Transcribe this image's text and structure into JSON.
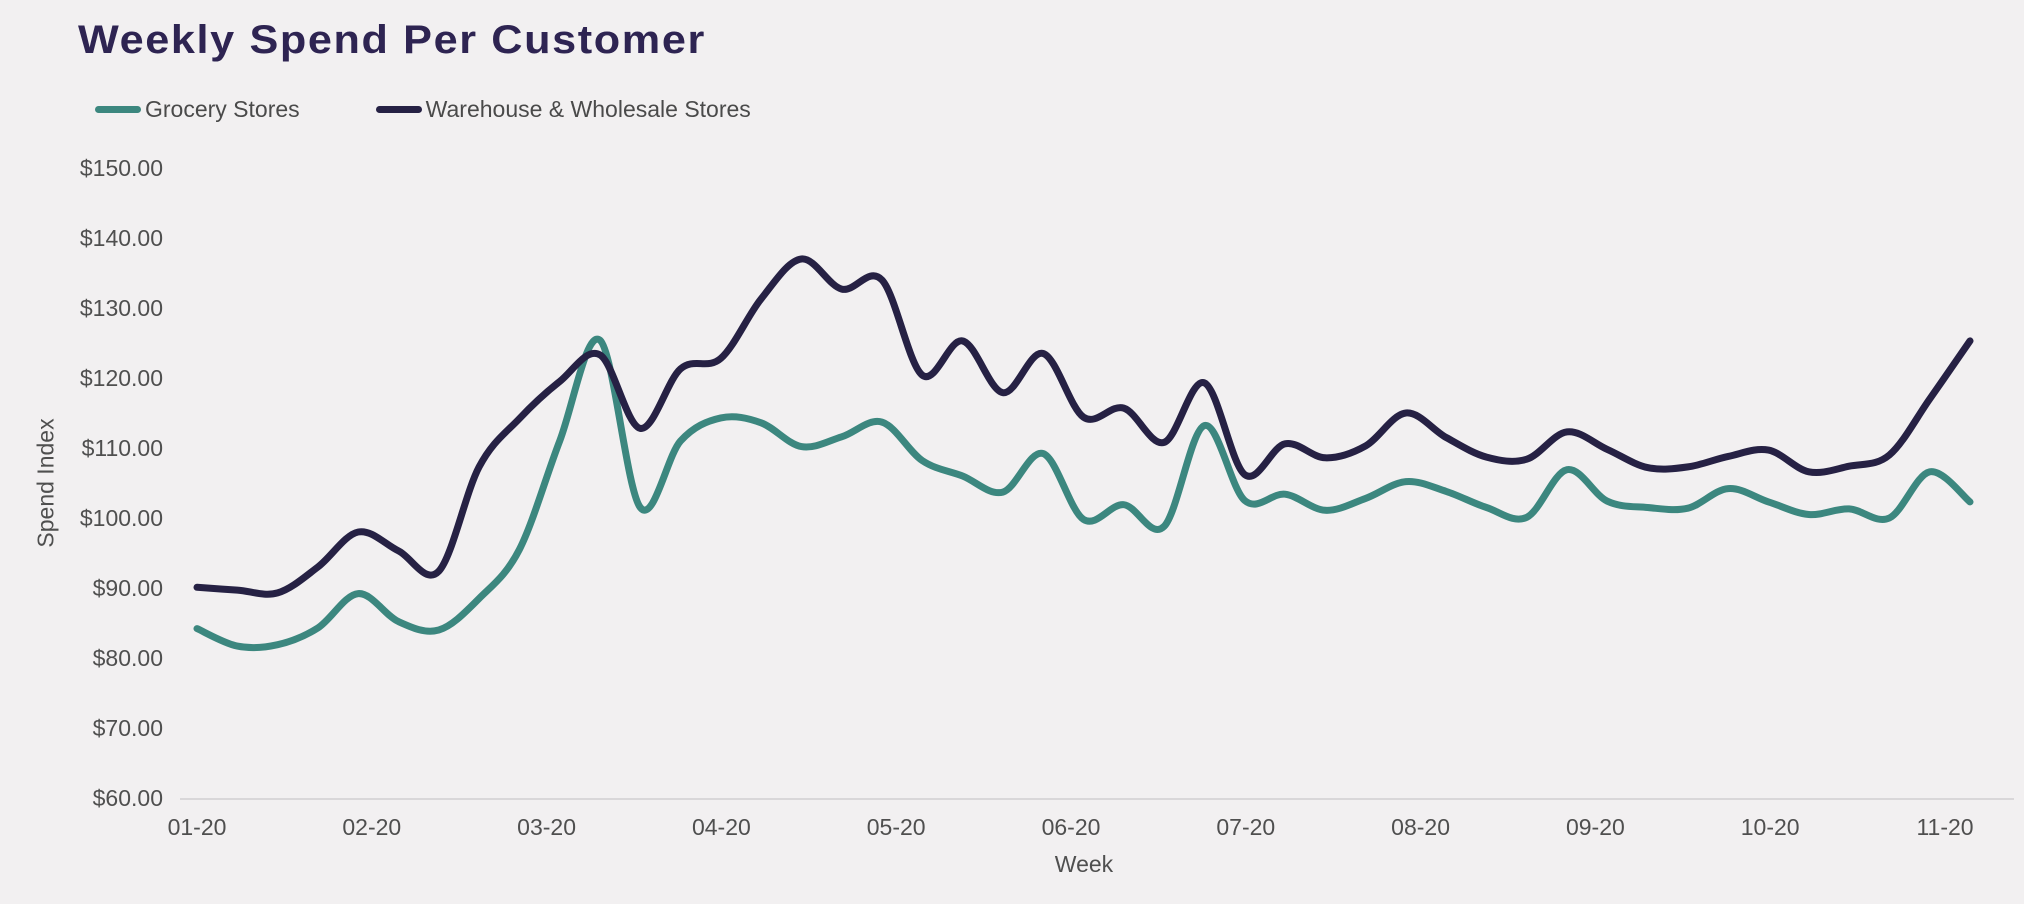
{
  "title": "Weekly Spend Per Customer",
  "colors": {
    "background": "#f2f0f1",
    "title_text": "#2e2452",
    "axis_text": "#4f4f4f",
    "legend_text": "#4a4a4a",
    "axis_line": "#d9d7d9",
    "grocery_line": "#3c877f",
    "warehouse_line": "#262144"
  },
  "legend": [
    {
      "label": "Grocery Stores",
      "color": "#3c877f"
    },
    {
      "label": "Warehouse & Wholesale Stores",
      "color": "#262144"
    }
  ],
  "chart_data": {
    "type": "line",
    "title": "Weekly Spend Per Customer",
    "xlabel": "Week",
    "ylabel": "Spend Index",
    "ylim": [
      60,
      150
    ],
    "grid": false,
    "legend_position": "top-left",
    "y_ticks": [
      150,
      140,
      130,
      120,
      110,
      100,
      90,
      80,
      70,
      60
    ],
    "y_tick_labels": [
      "$150.00",
      "$140.00",
      "$130.00",
      "$120.00",
      "$110.00",
      "$100.00",
      "$90.00",
      "$80.00",
      "$70.00",
      "$60.00"
    ],
    "x_tick_labels": [
      "01-20",
      "02-20",
      "03-20",
      "04-20",
      "05-20",
      "06-20",
      "07-20",
      "08-20",
      "09-20",
      "10-20",
      "11-20"
    ],
    "x_unit": "weekly observations, Jan 2020 - Nov 2020",
    "series": [
      {
        "name": "Grocery Stores",
        "color": "#3c877f",
        "values": [
          84.2,
          81.7,
          81.9,
          84.3,
          89.2,
          85.2,
          84.0,
          88.5,
          95.5,
          111.0,
          125.4,
          101.5,
          111.0,
          114.3,
          113.6,
          110.2,
          111.6,
          113.7,
          108.2,
          106.0,
          103.7,
          109.2,
          99.8,
          101.9,
          98.8,
          113.2,
          102.5,
          103.4,
          101.1,
          102.8,
          105.2,
          103.8,
          101.5,
          100.1,
          106.9,
          102.4,
          101.5,
          101.4,
          104.2,
          102.3,
          100.5,
          101.3,
          100.0,
          106.6,
          102.3
        ]
      },
      {
        "name": "Warehouse & Wholesale Stores",
        "color": "#262144",
        "values": [
          90.1,
          89.7,
          89.3,
          93.0,
          98.0,
          95.3,
          92.4,
          107.3,
          114.2,
          119.5,
          123.3,
          112.8,
          121.3,
          122.8,
          131.3,
          137.0,
          132.7,
          134.0,
          120.4,
          125.3,
          117.9,
          123.5,
          114.4,
          115.7,
          110.8,
          119.3,
          106.2,
          110.6,
          108.6,
          110.3,
          115.0,
          111.5,
          108.7,
          108.4,
          112.3,
          109.8,
          107.2,
          107.3,
          108.8,
          109.7,
          106.6,
          107.4,
          109.0,
          117.0,
          125.3
        ]
      }
    ]
  }
}
